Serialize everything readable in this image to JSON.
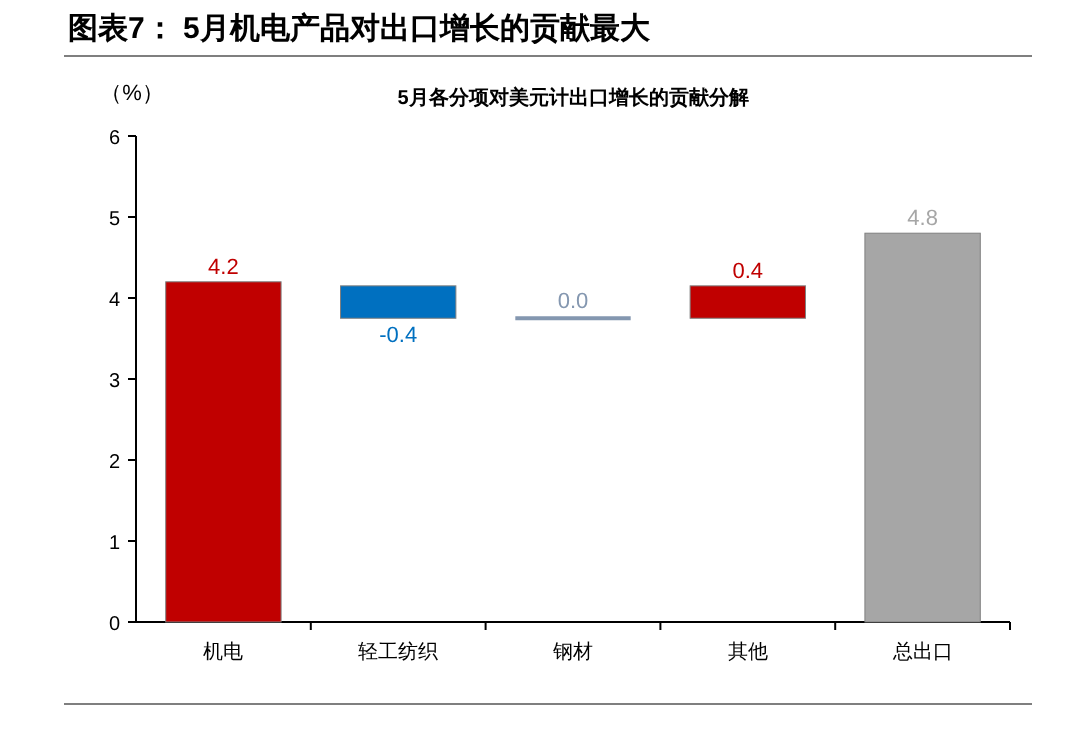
{
  "chart_data": {
    "type": "bar",
    "title": "图表7：  5月机电产品对出口增长的贡献最大",
    "subtitle": "5月各分项对美元计出口增长的贡献分解",
    "ylabel": "（%）",
    "categories": [
      "机电",
      "轻工纺织",
      "钢材",
      "其他",
      "总出口"
    ],
    "values": [
      4.2,
      -0.4,
      0.0,
      0.4,
      4.8
    ],
    "base": [
      0,
      4.15,
      3.75,
      3.75,
      0
    ],
    "colors": [
      "#c00000",
      "#0070c0",
      "#8497b0",
      "#c00000",
      "#a6a6a6"
    ],
    "value_labels": [
      "4.2",
      "-0.4",
      "0.0",
      "0.4",
      "4.8"
    ],
    "ylim": [
      0,
      6
    ],
    "yticks": [
      0,
      1,
      2,
      3,
      4,
      5,
      6
    ],
    "grid": false
  }
}
